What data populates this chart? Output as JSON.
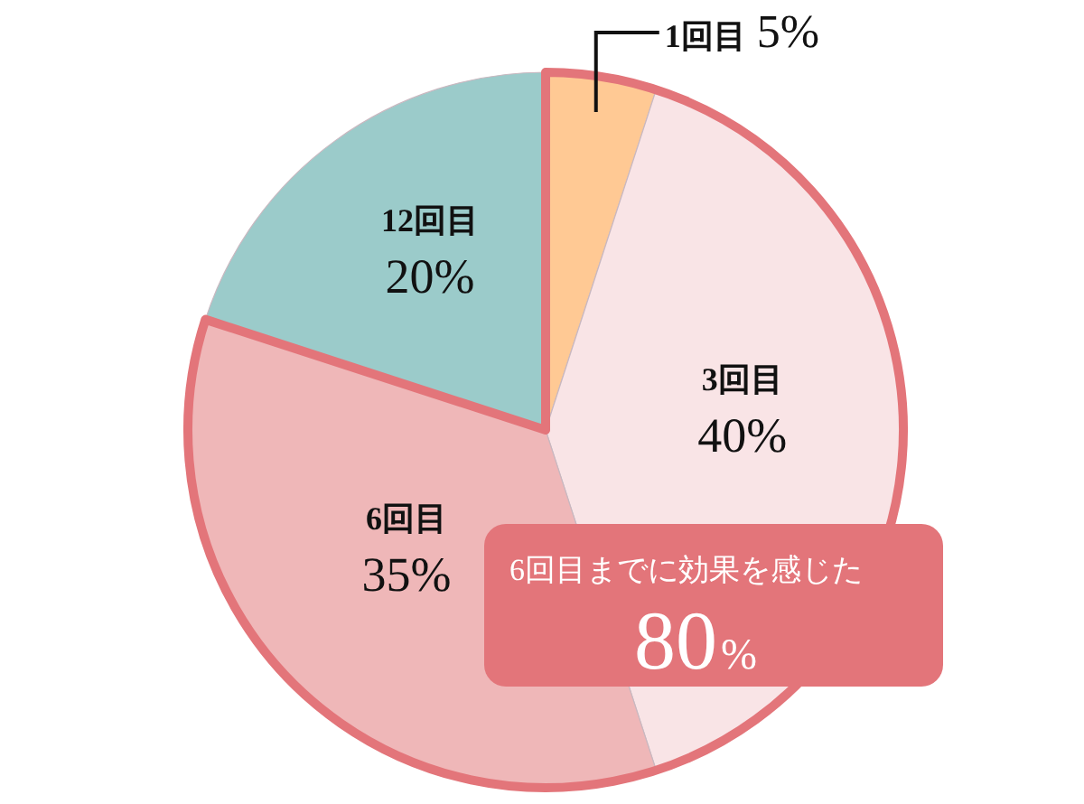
{
  "chart_data": {
    "type": "pie",
    "categories": [
      "1回目",
      "3回目",
      "6回目",
      "12回目"
    ],
    "values": [
      5,
      40,
      35,
      20
    ],
    "value_labels": [
      "5%",
      "40%",
      "35%",
      "20%"
    ],
    "colors": [
      "#ffc994",
      "#f9e4e6",
      "#efb7b8",
      "#9bcbca"
    ],
    "annotations": [
      {
        "text": "6回目までに効果を感じた",
        "x": "6回目"
      },
      {
        "text": "80%",
        "x": "6回目"
      }
    ]
  }
}
